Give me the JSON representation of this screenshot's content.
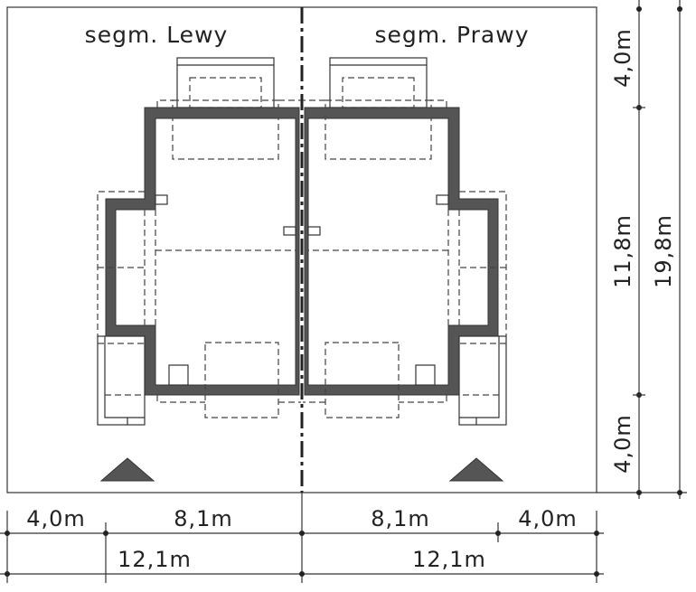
{
  "segments": {
    "left": "segm. Lewy",
    "right": "segm. Prawy"
  },
  "dimensions": {
    "vertical": {
      "top": "4,0m",
      "middle": "11,8m",
      "bottom": "4,0m",
      "total": "19,8m"
    },
    "horizontal_row1": [
      "4,0m",
      "8,1m",
      "8,1m",
      "4,0m"
    ],
    "horizontal_row2": [
      "12,1m",
      "12,1m"
    ]
  },
  "colors": {
    "wall": "#555555",
    "line": "#333333"
  }
}
